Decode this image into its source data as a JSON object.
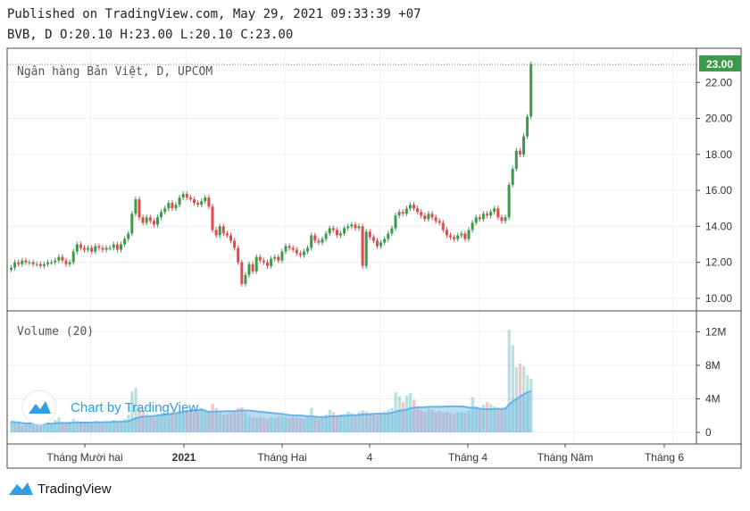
{
  "header": {
    "published_line": "Published on TradingView.com, May 29, 2021 09:33:39 +07",
    "ohlc_line": "BVB, D O:20.10 H:23.00 L:20.10 C:23.00"
  },
  "footer": {
    "brand": "TradingView"
  },
  "watermark": "Chart by TradingView",
  "colors": {
    "up": "#26a69a",
    "up_candle": "#3d9a4b",
    "down": "#e5474e",
    "volume_ma": "#66b3e6",
    "last_price_tag": "#3d9a4b"
  },
  "chart_data": {
    "type": "candlestick",
    "title": "Ngân hàng Bản Việt, D, UPCOM",
    "last_price_label": "23.00",
    "price_axis": {
      "ylim": [
        9.3,
        23.9
      ],
      "ticks": [
        "10.00",
        "12.00",
        "14.00",
        "16.00",
        "18.00",
        "20.00",
        "22.00"
      ]
    },
    "volume_pane": {
      "title": "Volume (20)",
      "ylim": [
        0,
        13
      ],
      "ticks": [
        "12M",
        "8M",
        "4M",
        "0"
      ]
    },
    "x_axis": {
      "labels": [
        "Tháng Mười hai",
        "2021",
        "Tháng Hai",
        "4",
        "Tháng 4",
        "Tháng Năm",
        "Tháng 6"
      ],
      "label_bars": [
        16,
        42,
        69,
        95,
        122,
        148,
        175
      ]
    },
    "candles_close": [
      11.7,
      12.0,
      11.9,
      12.1,
      12.0,
      12.0,
      11.9,
      11.9,
      11.8,
      11.9,
      12.0,
      12.0,
      12.1,
      12.3,
      12.1,
      11.9,
      12.0,
      12.6,
      13.0,
      12.8,
      12.7,
      12.8,
      12.6,
      12.9,
      12.8,
      12.7,
      12.8,
      12.8,
      13.0,
      12.7,
      13.0,
      13.3,
      13.6,
      14.7,
      15.5,
      14.5,
      14.2,
      14.5,
      14.3,
      14.1,
      14.5,
      14.8,
      15.0,
      15.3,
      15.0,
      15.2,
      15.6,
      15.8,
      15.6,
      15.5,
      15.3,
      15.2,
      15.4,
      15.6,
      15.1,
      13.8,
      13.5,
      14.0,
      13.6,
      13.5,
      13.2,
      12.8,
      12.0,
      10.8,
      11.3,
      11.9,
      11.5,
      12.3,
      12.1,
      12.0,
      11.8,
      12.2,
      12.3,
      12.1,
      12.6,
      12.9,
      12.8,
      12.7,
      12.5,
      12.4,
      12.6,
      12.8,
      13.5,
      13.2,
      13.1,
      13.3,
      13.6,
      13.9,
      13.8,
      13.5,
      13.6,
      13.9,
      14.0,
      14.1,
      13.9,
      14.0,
      11.8,
      13.7,
      13.4,
      13.2,
      12.9,
      13.1,
      13.3,
      13.6,
      13.9,
      14.6,
      14.8,
      14.7,
      15.0,
      15.2,
      15.0,
      14.8,
      14.6,
      14.4,
      14.7,
      14.5,
      14.3,
      14.2,
      13.8,
      13.5,
      13.4,
      13.3,
      13.5,
      13.6,
      13.3,
      13.8,
      14.2,
      14.5,
      14.4,
      14.7,
      14.6,
      14.8,
      15.0,
      14.5,
      14.3,
      14.5,
      16.3,
      17.2,
      18.2,
      18.0,
      19.0,
      20.1,
      23.0
    ],
    "volume_m": [
      1.3,
      1.1,
      1.2,
      0.8,
      0.9,
      1.2,
      0.9,
      1.0,
      0.8,
      1.3,
      1.1,
      0.9,
      1.5,
      1.8,
      1.2,
      1.0,
      1.3,
      1.6,
      1.4,
      1.2,
      1.3,
      1.1,
      1.0,
      1.4,
      1.2,
      1.0,
      1.3,
      1.2,
      1.5,
      1.1,
      1.4,
      1.6,
      2.1,
      4.9,
      5.3,
      3.1,
      2.6,
      2.2,
      2.0,
      1.8,
      2.2,
      2.3,
      2.1,
      2.3,
      2.5,
      2.4,
      2.6,
      2.7,
      2.5,
      2.8,
      2.4,
      2.6,
      2.9,
      2.7,
      2.5,
      3.4,
      2.9,
      2.4,
      2.1,
      2.2,
      2.3,
      2.6,
      2.9,
      3.0,
      2.4,
      2.0,
      1.8,
      1.7,
      1.8,
      1.7,
      1.6,
      1.8,
      1.7,
      1.9,
      2.0,
      1.8,
      1.7,
      1.9,
      1.8,
      1.7,
      1.6,
      1.9,
      2.9,
      1.8,
      1.6,
      1.9,
      2.1,
      2.7,
      2.4,
      2.0,
      2.1,
      2.2,
      2.5,
      2.3,
      2.1,
      2.4,
      2.6,
      2.5,
      2.3,
      2.1,
      2.0,
      2.2,
      2.5,
      2.7,
      2.9,
      4.8,
      4.3,
      3.6,
      4.4,
      4.7,
      3.9,
      3.1,
      2.6,
      2.5,
      2.9,
      2.7,
      2.4,
      2.6,
      2.4,
      2.5,
      2.3,
      2.2,
      2.4,
      2.5,
      2.3,
      2.6,
      4.2,
      3.1,
      2.9,
      3.3,
      3.6,
      3.4,
      3.1,
      2.9,
      2.8,
      3.0,
      12.2,
      10.4,
      7.8,
      8.2,
      7.9,
      6.8,
      6.4
    ]
  }
}
